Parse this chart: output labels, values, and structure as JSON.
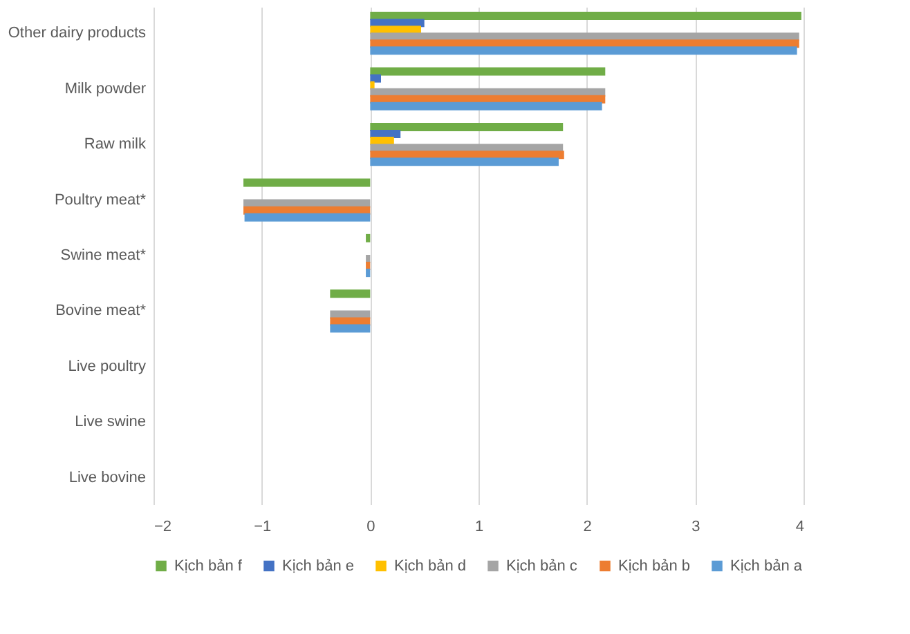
{
  "chart_data": {
    "type": "bar",
    "orientation": "horizontal",
    "categories": [
      "Other dairy products",
      "Milk powder",
      "Raw milk",
      "Poultry meat*",
      "Swine meat*",
      "Bovine meat*",
      "Live poultry",
      "Live swine",
      "Live bovine"
    ],
    "series": [
      {
        "name": "Kịch bản f",
        "color": "#70ad47",
        "values": [
          3.98,
          2.17,
          1.78,
          -1.17,
          -0.04,
          -0.37,
          0,
          0,
          0
        ]
      },
      {
        "name": "Kịch bản e",
        "color": "#4472c4",
        "values": [
          0.5,
          0.1,
          0.28,
          0,
          0,
          0,
          0,
          0,
          0
        ]
      },
      {
        "name": "Kịch bản d",
        "color": "#ffc000",
        "values": [
          0.47,
          0.04,
          0.22,
          0,
          0,
          0,
          0,
          0,
          0
        ]
      },
      {
        "name": "Kịch bản c",
        "color": "#a5a5a5",
        "values": [
          3.96,
          2.17,
          1.78,
          -1.17,
          -0.04,
          -0.37,
          0,
          0,
          0
        ]
      },
      {
        "name": "Kịch bản b",
        "color": "#ed7d31",
        "values": [
          3.96,
          2.17,
          1.79,
          -1.17,
          -0.04,
          -0.37,
          0,
          0,
          0
        ]
      },
      {
        "name": "Kịch bản a",
        "color": "#5b9bd5",
        "values": [
          3.94,
          2.14,
          1.74,
          -1.16,
          -0.04,
          -0.37,
          0,
          0,
          0
        ]
      }
    ],
    "xlim": [
      -2,
      4
    ],
    "xticks": [
      -2,
      -1,
      0,
      1,
      2,
      3,
      4
    ],
    "grid": "x",
    "legend": "bottom"
  }
}
